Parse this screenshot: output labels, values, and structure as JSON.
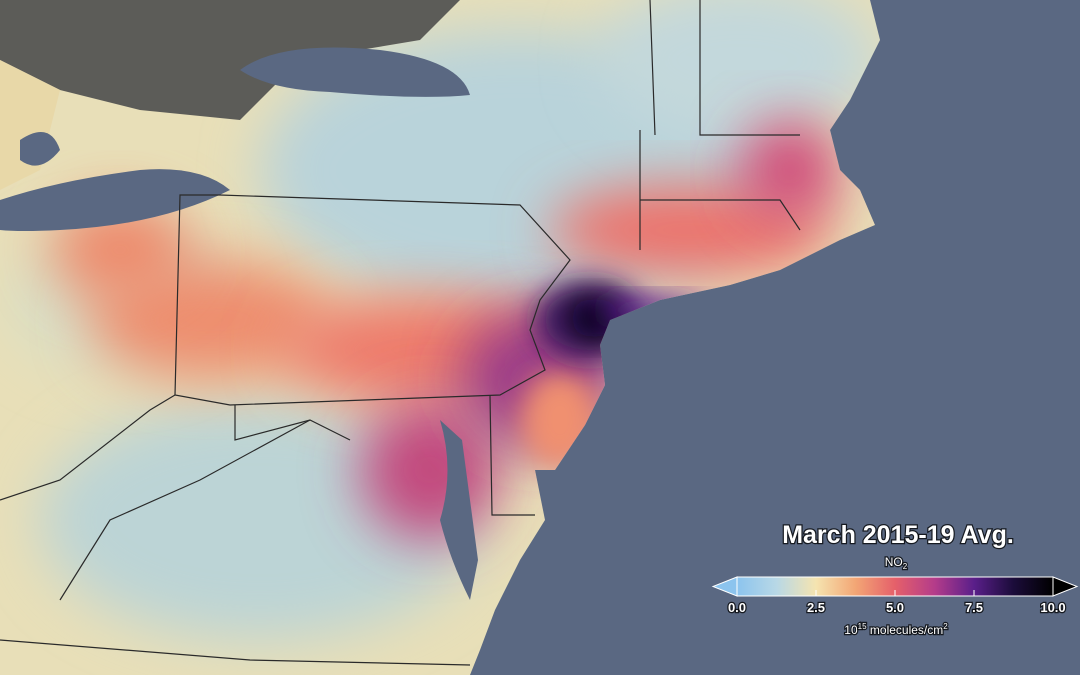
{
  "legend": {
    "title": "March 2015-19 Avg.",
    "variable": {
      "text": "NO",
      "subscript": "2"
    },
    "range": [
      0,
      10
    ],
    "ticks": [
      {
        "value": 0,
        "label": "0.0"
      },
      {
        "value": 2.5,
        "label": "2.5"
      },
      {
        "value": 5,
        "label": "5.0"
      },
      {
        "value": 7.5,
        "label": "7.5"
      },
      {
        "value": 10,
        "label": "10.0"
      }
    ],
    "colors": [
      "#8cc4ee",
      "#b8d8e6",
      "#f5e4b0",
      "#f3a675",
      "#e5606a",
      "#b43c8a",
      "#5a1f8a",
      "#1b0c3a",
      "#000000"
    ],
    "unit": {
      "base": "10",
      "power": "15",
      "rest": " molecules/cm",
      "rest_power": "2"
    }
  }
}
